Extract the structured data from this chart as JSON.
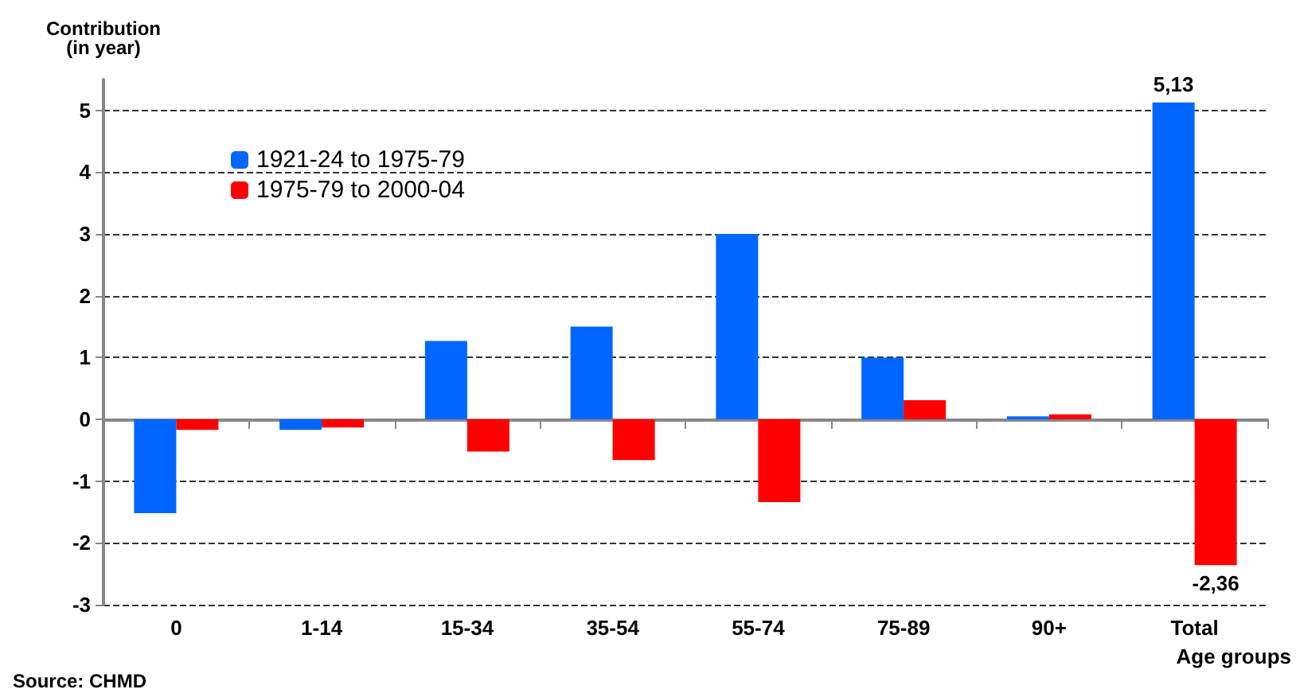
{
  "chart_data": {
    "type": "bar",
    "ylabel": "Contribution\n(in year)",
    "xlabel": "Age groups",
    "annotations": [
      "Source: CHMD"
    ],
    "categories": [
      "0",
      "1-14",
      "15-34",
      "35-54",
      "55-74",
      "75-89",
      "90+",
      "Total"
    ],
    "series": [
      {
        "name": "1921-24 to 1975-79",
        "color": "#0066ff",
        "values": [
          -1.52,
          -0.17,
          1.27,
          1.5,
          3.0,
          1.0,
          0.05,
          5.13
        ],
        "value_labels": [
          null,
          null,
          null,
          null,
          null,
          null,
          null,
          "5,13"
        ]
      },
      {
        "name": "1975-79 to 2000-04",
        "color": "#ff0000",
        "values": [
          -0.17,
          -0.13,
          -0.52,
          -0.66,
          -1.34,
          0.31,
          0.08,
          -2.36
        ],
        "value_labels": [
          null,
          null,
          null,
          null,
          null,
          null,
          null,
          "-2,36"
        ]
      }
    ],
    "ylim": [
      -3,
      5.5
    ],
    "yticks": [
      -3,
      -2,
      -1,
      0,
      1,
      2,
      3,
      4,
      5
    ],
    "grid": "y",
    "legend": "top left"
  }
}
